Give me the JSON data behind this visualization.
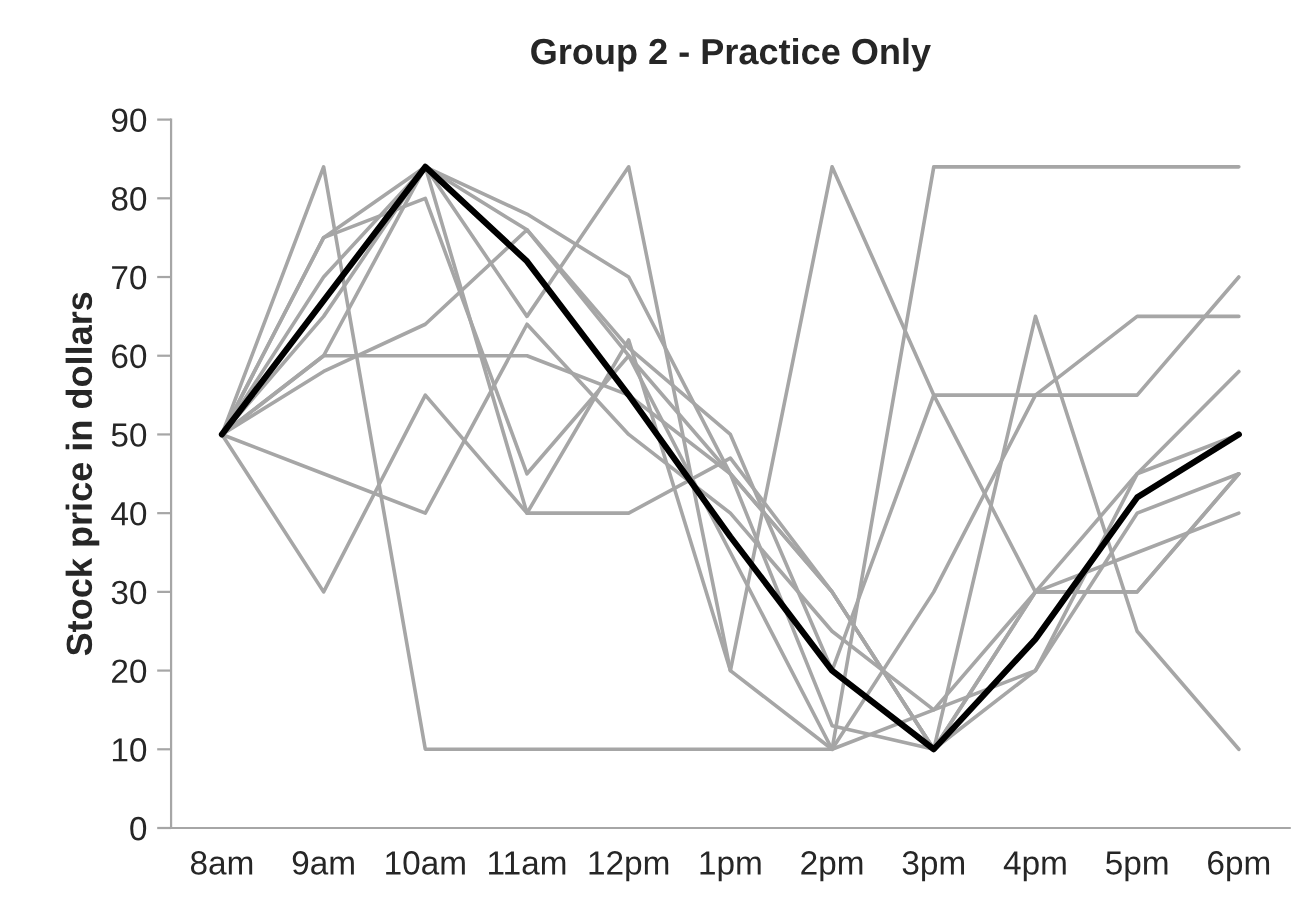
{
  "chart_data": {
    "type": "line",
    "title": "Group 2 - Practice Only",
    "ylabel": "Stock price in dollars",
    "categories": [
      "8am",
      "9am",
      "10am",
      "11am",
      "12pm",
      "1pm",
      "2pm",
      "3pm",
      "4pm",
      "5pm",
      "6pm"
    ],
    "ylim": [
      0,
      90
    ],
    "yticks": [
      0,
      10,
      20,
      30,
      40,
      50,
      60,
      70,
      80,
      90
    ],
    "grid": false,
    "legend": false,
    "marker": "none",
    "line_style": "solid",
    "series": [
      {
        "color": "#a6a6a6",
        "values": [
          50,
          84,
          10,
          10,
          10,
          10,
          10,
          84,
          84,
          84,
          84
        ]
      },
      {
        "color": "#a6a6a6",
        "values": [
          50,
          30,
          55,
          40,
          40,
          47,
          30,
          10,
          30,
          35,
          40
        ]
      },
      {
        "color": "#a6a6a6",
        "values": [
          50,
          45,
          40,
          64,
          50,
          40,
          25,
          15,
          20,
          40,
          45
        ]
      },
      {
        "color": "#a6a6a6",
        "values": [
          50,
          60,
          60,
          60,
          55,
          45,
          30,
          10,
          20,
          45,
          58
        ]
      },
      {
        "color": "#a6a6a6",
        "values": [
          50,
          58,
          64,
          76,
          60,
          35,
          10,
          15,
          30,
          45,
          50
        ]
      },
      {
        "color": "#a6a6a6",
        "values": [
          50,
          75,
          80,
          45,
          60,
          45,
          30,
          10,
          30,
          30,
          45
        ]
      },
      {
        "color": "#a6a6a6",
        "values": [
          50,
          65,
          84,
          78,
          70,
          45,
          13,
          10,
          65,
          25,
          10
        ]
      },
      {
        "color": "#a6a6a6",
        "values": [
          50,
          70,
          84,
          40,
          62,
          20,
          84,
          55,
          30,
          30,
          45
        ]
      },
      {
        "color": "#a6a6a6",
        "values": [
          50,
          75,
          84,
          76,
          61,
          50,
          20,
          55,
          55,
          55,
          70
        ]
      },
      {
        "color": "#a6a6a6",
        "values": [
          50,
          60,
          84,
          65,
          84,
          20,
          10,
          30,
          55,
          65,
          65
        ]
      },
      {
        "color": "#000000",
        "values": [
          50,
          67,
          84,
          72,
          55,
          37,
          20,
          10,
          24,
          42,
          50
        ]
      }
    ]
  }
}
